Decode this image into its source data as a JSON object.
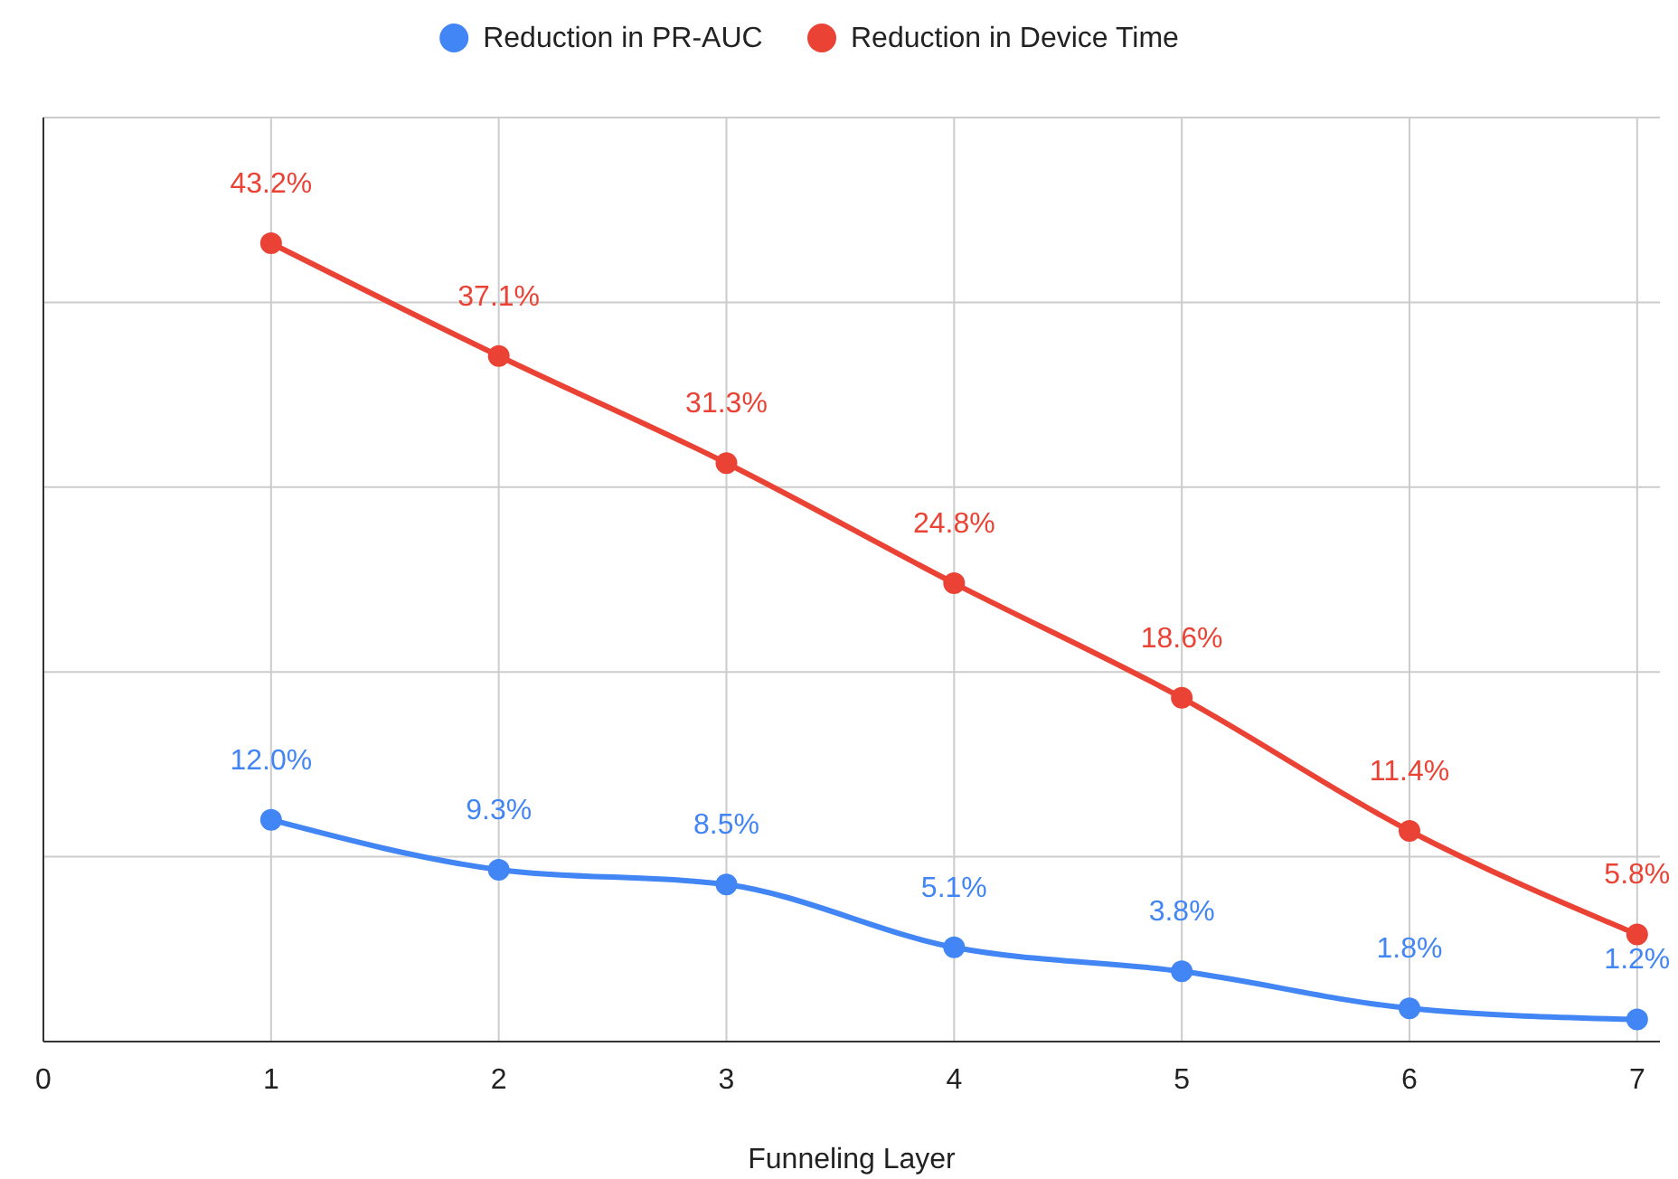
{
  "chart_data": {
    "type": "line",
    "xlabel": "Funneling Layer",
    "x": [
      1,
      2,
      3,
      4,
      5,
      6,
      7
    ],
    "xlim": [
      0,
      7.1
    ],
    "xticks": [
      0,
      1,
      2,
      3,
      4,
      5,
      6,
      7
    ],
    "ylim": [
      0,
      50
    ],
    "yticks": [
      {
        "value": 0,
        "label": null
      },
      {
        "value": 10,
        "label": null
      },
      {
        "value": 20,
        "label": null
      },
      {
        "value": 30,
        "label": null
      },
      {
        "value": 40,
        "label": null
      },
      {
        "value": 50,
        "label": null
      }
    ],
    "tick_labels": "x",
    "grid": true,
    "legend": "top",
    "marker": "circle",
    "line_style": "solid",
    "series": [
      {
        "name": "Reduction in PR-AUC",
        "color": "#4285f4",
        "values": [
          12.0,
          9.3,
          8.5,
          5.1,
          3.8,
          1.8,
          1.2
        ],
        "value_labels": [
          "12.0%",
          "9.3%",
          "8.5%",
          "5.1%",
          "3.8%",
          "1.8%",
          "1.2%"
        ]
      },
      {
        "name": "Reduction in Device Time",
        "color": "#ea4335",
        "values": [
          43.2,
          37.1,
          31.3,
          24.8,
          18.6,
          11.4,
          5.8
        ],
        "value_labels": [
          "43.2%",
          "37.1%",
          "31.3%",
          "24.8%",
          "18.6%",
          "11.4%",
          "5.8%"
        ]
      }
    ]
  }
}
